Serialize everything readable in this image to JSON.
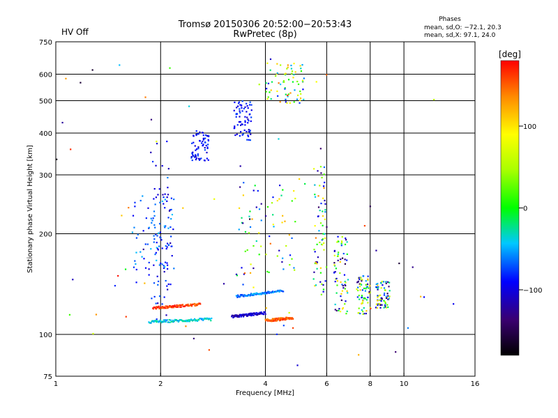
{
  "header": {
    "title_line1": "Tromsø 20150306 20:52:00−20:53:43",
    "title_line2": "RwPretec (8p)",
    "status": "HV Off",
    "status_color": "#cc0000",
    "stats_title": "Phases",
    "stats_o": "mean, sd,O: −72.1, 20.3",
    "stats_x": "mean, sd,X:  97.1, 24.0"
  },
  "colorbar": {
    "unit": "[deg]",
    "ticks": [
      {
        "value": 100,
        "label": "100"
      },
      {
        "value": 0,
        "label": "0"
      },
      {
        "value": -100,
        "label": "−100"
      }
    ],
    "range": [
      -180,
      180
    ]
  },
  "chart_data": {
    "type": "scatter",
    "xlabel": "Frequency [MHz]",
    "ylabel": "Stationary phase Virtual Height [km]",
    "xscale": "log",
    "yscale": "log",
    "xlim": [
      1,
      16
    ],
    "ylim": [
      75,
      750
    ],
    "xticks": [
      1,
      2,
      4,
      6,
      8,
      10,
      16
    ],
    "xtick_labels": [
      "1",
      "2",
      "4",
      "6",
      "8",
      "10",
      "16"
    ],
    "yticks": [
      75,
      100,
      200,
      300,
      400,
      500,
      600,
      750
    ],
    "ytick_labels": [
      "75",
      "100",
      "200",
      "300",
      "400",
      "500",
      "600",
      "750"
    ],
    "grid_x": [
      2,
      4,
      6,
      8,
      10
    ],
    "grid_y": [
      100,
      200,
      300,
      400,
      500,
      600
    ],
    "clusters": [
      {
        "x": [
          1.85,
          2.15
        ],
        "y": [
          110,
          380
        ],
        "phase": [
          -120,
          -60
        ]
      },
      {
        "x": [
          2.45,
          2.75
        ],
        "y": [
          330,
          410
        ],
        "phase": [
          -110,
          -70
        ]
      },
      {
        "x": [
          3.25,
          3.65
        ],
        "y": [
          380,
          500
        ],
        "phase": [
          -110,
          -70
        ]
      },
      {
        "x": [
          3.3,
          5.0
        ],
        "y": [
          150,
          300
        ],
        "phase": [
          -130,
          130
        ]
      },
      {
        "x": [
          1.65,
          2.2
        ],
        "y": [
          140,
          260
        ],
        "phase": [
          -100,
          -40
        ]
      },
      {
        "x": [
          6.3,
          6.9
        ],
        "y": [
          115,
          200
        ],
        "phase": [
          -150,
          120
        ]
      },
      {
        "x": [
          7.3,
          8.0
        ],
        "y": [
          115,
          150
        ],
        "phase": [
          -150,
          120
        ]
      },
      {
        "x": [
          8.3,
          9.1
        ],
        "y": [
          120,
          145
        ],
        "phase": [
          -150,
          120
        ]
      },
      {
        "x": [
          4.0,
          5.2
        ],
        "y": [
          490,
          650
        ],
        "phase": [
          -100,
          150
        ]
      },
      {
        "x": [
          5.5,
          6.0
        ],
        "y": [
          130,
          320
        ],
        "phase": [
          -140,
          140
        ]
      }
    ],
    "traces": [
      {
        "x": [
          1.9,
          2.6
        ],
        "y": [
          120,
          123
        ],
        "phase": 160
      },
      {
        "x": [
          1.85,
          2.8
        ],
        "y": [
          109,
          111
        ],
        "phase": -40
      },
      {
        "x": [
          3.2,
          4.0
        ],
        "y": [
          113,
          116
        ],
        "phase": -110
      },
      {
        "x": [
          4.0,
          4.8
        ],
        "y": [
          110,
          112
        ],
        "phase": 150
      },
      {
        "x": [
          3.3,
          4.5
        ],
        "y": [
          130,
          135
        ],
        "phase": -60
      }
    ]
  }
}
